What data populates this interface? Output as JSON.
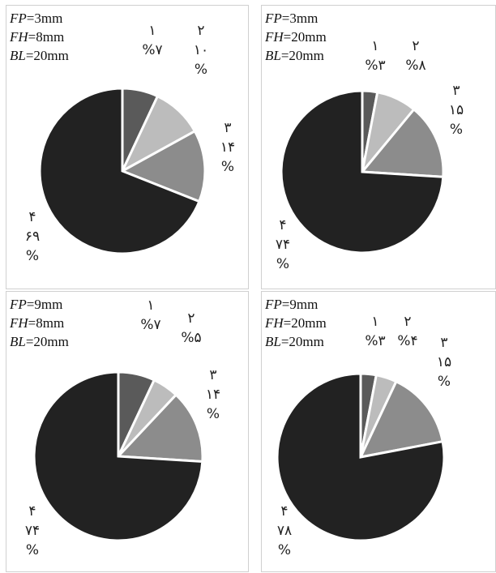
{
  "colors": {
    "seg1": "#5a5a5a",
    "seg2": "#bcbcbc",
    "seg3": "#8c8c8c",
    "seg4": "#222222",
    "border": "#ffffff"
  },
  "panels": [
    {
      "fp_label": "FP",
      "fp_val": "=3mm",
      "fh_label": "FH",
      "fh_val": "=8mm",
      "bl_label": "BL",
      "bl_val": "=20mm"
    },
    {
      "fp_label": "FP",
      "fp_val": "=3mm",
      "fh_label": "FH",
      "fh_val": "=20mm",
      "bl_label": "BL",
      "bl_val": "=20mm"
    },
    {
      "fp_label": "FP",
      "fp_val": "=9mm",
      "fh_label": "FH",
      "fh_val": "=8mm",
      "bl_label": "BL",
      "bl_val": "=20mm"
    },
    {
      "fp_label": "FP",
      "fp_val": "=9mm",
      "fh_label": "FH",
      "fh_val": "=20mm",
      "bl_label": "BL",
      "bl_val": "=20mm"
    }
  ],
  "chart_data": [
    {
      "type": "pie",
      "slices": [
        {
          "category": "۱",
          "value": 7,
          "label": "%۷"
        },
        {
          "category": "۲",
          "value": 10,
          "label": "۱۰",
          "pct": "%"
        },
        {
          "category": "۳",
          "value": 14,
          "label": "۱۴",
          "pct": "%"
        },
        {
          "category": "۴",
          "value": 69,
          "label": "۶۹",
          "pct": "%"
        }
      ]
    },
    {
      "type": "pie",
      "slices": [
        {
          "category": "۱",
          "value": 3,
          "label": "%۳"
        },
        {
          "category": "۲",
          "value": 8,
          "label": "%۸"
        },
        {
          "category": "۳",
          "value": 15,
          "label": "۱۵",
          "pct": "%"
        },
        {
          "category": "۴",
          "value": 74,
          "label": "۷۴",
          "pct": "%"
        }
      ]
    },
    {
      "type": "pie",
      "slices": [
        {
          "category": "۱",
          "value": 7,
          "label": "%۷"
        },
        {
          "category": "۲",
          "value": 5,
          "label": "%۵"
        },
        {
          "category": "۳",
          "value": 14,
          "label": "۱۴",
          "pct": "%"
        },
        {
          "category": "۴",
          "value": 74,
          "label": "۷۴",
          "pct": "%"
        }
      ]
    },
    {
      "type": "pie",
      "slices": [
        {
          "category": "۱",
          "value": 3,
          "label": "%۳"
        },
        {
          "category": "۲",
          "value": 4,
          "label": "%۴"
        },
        {
          "category": "۳",
          "value": 15,
          "label": "۱۵",
          "pct": "%"
        },
        {
          "category": "۴",
          "value": 78,
          "label": "۷۸",
          "pct": "%"
        }
      ]
    }
  ]
}
